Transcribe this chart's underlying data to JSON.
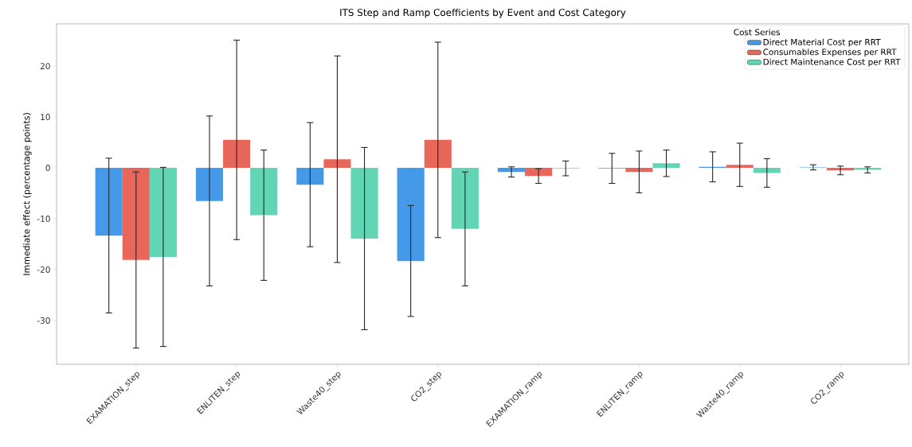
{
  "chart_data": {
    "type": "bar",
    "title": "ITS Step and Ramp Coefficients by Event and Cost Category",
    "ylabel": "Immediate effect (percentage points)",
    "legend_title": "Cost Series",
    "categories": [
      "EXAMATION_step",
      "ENLITEN_step",
      "Waste40_step",
      "CO2_step",
      "EXAMATION_ramp",
      "ENLITEN_ramp",
      "Waste40_ramp",
      "CO2_ramp"
    ],
    "series": [
      {
        "name": "Direct Material Cost per RRT",
        "color": "#4599e9",
        "values": [
          -13.3,
          -6.5,
          -3.3,
          -18.3,
          -0.8,
          -0.1,
          0.2,
          0.1
        ],
        "errors": [
          15.2,
          16.7,
          12.2,
          10.9,
          1.0,
          2.95,
          2.95,
          0.5
        ]
      },
      {
        "name": "Consumables Expenses per RRT",
        "color": "#e8665a",
        "values": [
          -18.1,
          5.5,
          1.7,
          5.5,
          -1.6,
          -0.8,
          0.6,
          -0.5
        ],
        "errors": [
          17.3,
          19.6,
          20.3,
          19.2,
          1.45,
          4.1,
          4.25,
          0.85
        ]
      },
      {
        "name": "Direct Maintenance Cost per RRT",
        "color": "#62d5b4",
        "values": [
          -17.5,
          -9.3,
          -13.9,
          -12.0,
          -0.1,
          0.9,
          -1.0,
          -0.4
        ],
        "errors": [
          17.6,
          12.8,
          17.9,
          11.2,
          1.45,
          2.6,
          2.8,
          0.6
        ]
      }
    ],
    "ylim": [
      -38.6,
      28.3
    ],
    "yticks": [
      -30,
      -20,
      -10,
      0,
      10,
      20
    ],
    "legend": "top right",
    "grid": false
  }
}
